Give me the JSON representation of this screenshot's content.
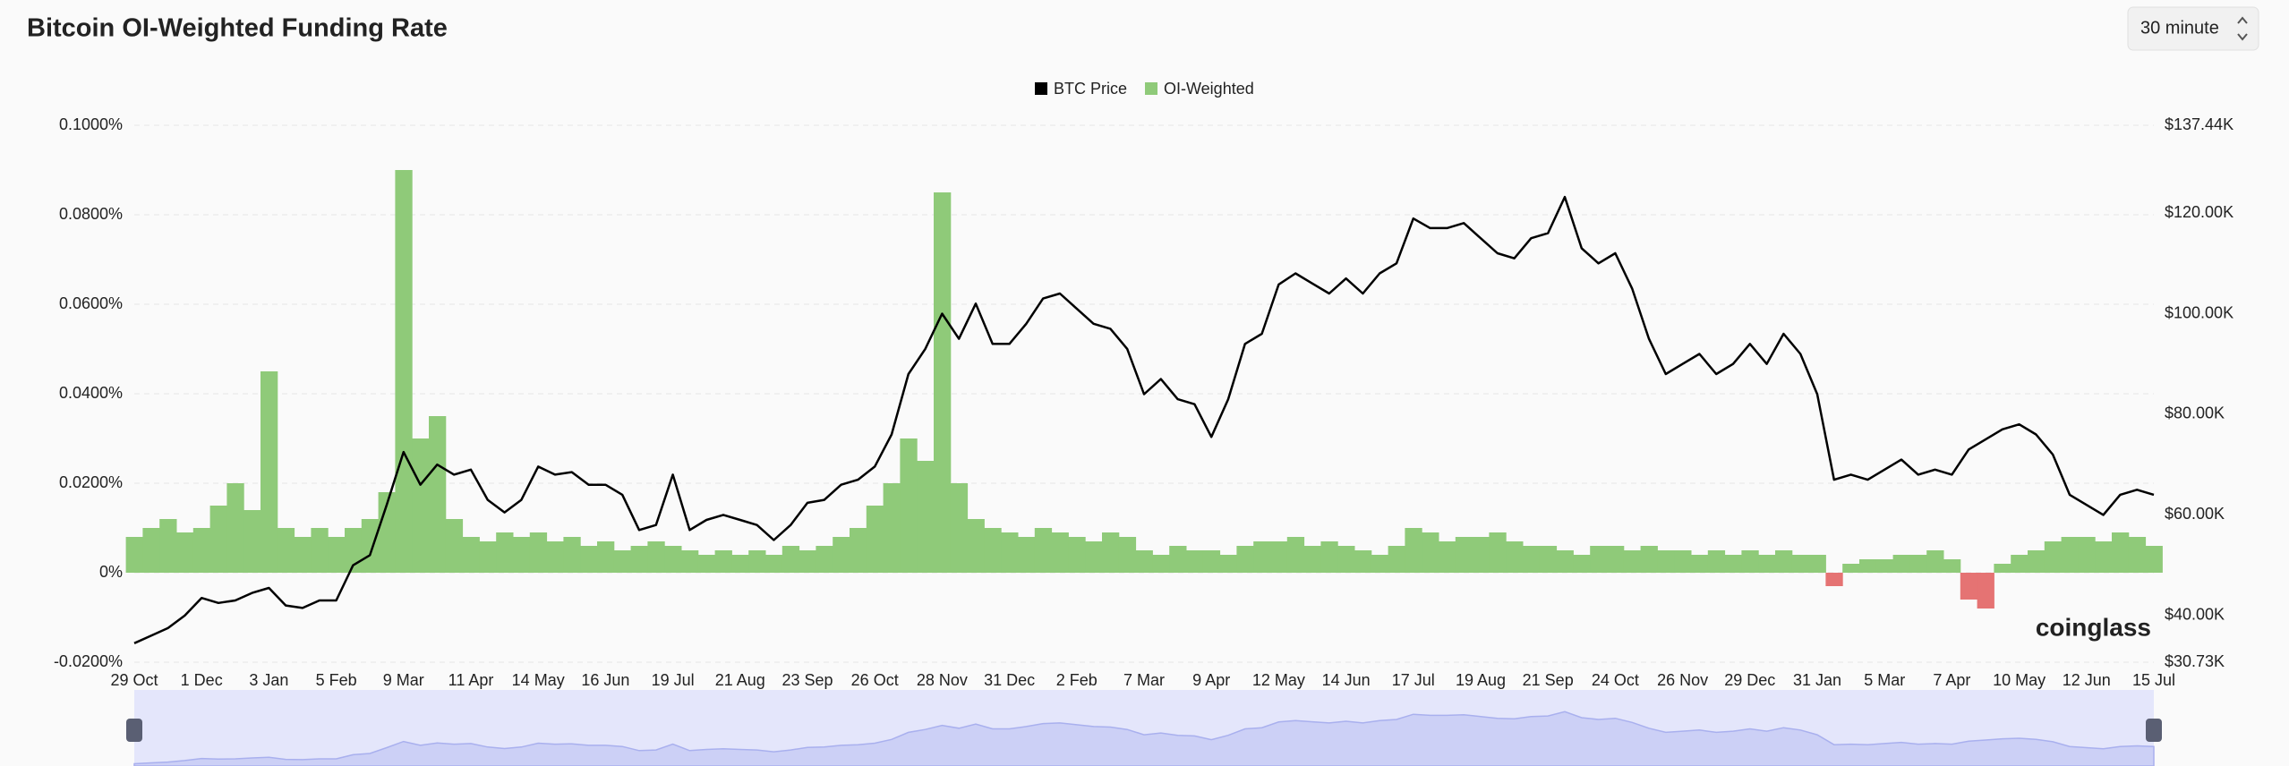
{
  "chart_data": {
    "type": "bar-line",
    "title": "Bitcoin OI-Weighted Funding Rate",
    "interval": "30 minute",
    "watermark": "coinglass",
    "categories": [
      "29 Oct",
      null,
      null,
      null,
      "1 Dec",
      null,
      null,
      null,
      "3 Jan",
      null,
      null,
      null,
      "5 Feb",
      null,
      null,
      null,
      "9 Mar",
      null,
      null,
      null,
      "11 Apr",
      null,
      null,
      null,
      "14 May",
      null,
      null,
      null,
      "16 Jun",
      null,
      null,
      null,
      "19 Jul",
      null,
      null,
      null,
      "21 Aug",
      null,
      null,
      null,
      "23 Sep",
      null,
      null,
      null,
      "26 Oct",
      null,
      null,
      null,
      "28 Nov",
      null,
      null,
      null,
      "31 Dec",
      null,
      null,
      null,
      "2 Feb",
      null,
      null,
      null,
      "7 Mar",
      null,
      null,
      null,
      "9 Apr",
      null,
      null,
      null,
      "12 May",
      null,
      null,
      null,
      "14 Jun",
      null,
      null,
      null,
      "17 Jul",
      null,
      null,
      null,
      "19 Aug",
      null,
      null,
      null,
      "21 Sep",
      null,
      null,
      null,
      "24 Oct",
      null,
      null,
      null,
      "26 Nov",
      null,
      null,
      null,
      "29 Dec",
      null,
      null,
      null,
      "31 Jan",
      null,
      null,
      null,
      "5 Mar",
      null,
      null,
      null,
      "7 Apr",
      null,
      null,
      null,
      "10 May",
      null,
      null,
      null,
      "12 Jun",
      null,
      null,
      null,
      "15 Jul"
    ],
    "series": [
      {
        "name": "BTC Price",
        "color": "#000000",
        "type": "line",
        "axis": "y2",
        "values": [
          34.5,
          36,
          37.5,
          40,
          43.5,
          42.5,
          43,
          44.5,
          45.5,
          42,
          41.5,
          43,
          43,
          50,
          52,
          62,
          72.5,
          66,
          70,
          68,
          69,
          63,
          60.5,
          63,
          69.6,
          68,
          68.5,
          66,
          66,
          64,
          57,
          58,
          68,
          57,
          59,
          60,
          59,
          58,
          55,
          58,
          62.4,
          63,
          66,
          67,
          69.6,
          76,
          88,
          93,
          100,
          95,
          102,
          94,
          94,
          98,
          103,
          104,
          101,
          98,
          97,
          93,
          84,
          87,
          83,
          82,
          75.5,
          83,
          94,
          96,
          105.8,
          108,
          106,
          104,
          107,
          104,
          108,
          110,
          118.9,
          117,
          117,
          118,
          115,
          112,
          111,
          115,
          116,
          123.2,
          113,
          110,
          112,
          105,
          95,
          88,
          90,
          92,
          88,
          90,
          94,
          90,
          96,
          92,
          84,
          67,
          68,
          67,
          69,
          71,
          68,
          69,
          68,
          73,
          75,
          77,
          78,
          76,
          72,
          64,
          62,
          60,
          64,
          65,
          64
        ]
      },
      {
        "name": "OI-Weighted",
        "color": "#8fca79",
        "negative_color": "#e57373",
        "type": "bar",
        "axis": "y",
        "values": [
          0.008,
          0.01,
          0.012,
          0.009,
          0.01,
          0.015,
          0.02,
          0.014,
          0.045,
          0.01,
          0.008,
          0.01,
          0.008,
          0.01,
          0.012,
          0.018,
          0.09,
          0.03,
          0.035,
          0.012,
          0.008,
          0.007,
          0.009,
          0.008,
          0.009,
          0.007,
          0.008,
          0.006,
          0.007,
          0.005,
          0.006,
          0.007,
          0.006,
          0.005,
          0.004,
          0.005,
          0.004,
          0.005,
          0.004,
          0.006,
          0.005,
          0.006,
          0.008,
          0.01,
          0.015,
          0.02,
          0.03,
          0.025,
          0.085,
          0.02,
          0.012,
          0.01,
          0.009,
          0.008,
          0.01,
          0.009,
          0.008,
          0.007,
          0.009,
          0.008,
          0.005,
          0.004,
          0.006,
          0.005,
          0.005,
          0.004,
          0.006,
          0.007,
          0.007,
          0.008,
          0.006,
          0.007,
          0.006,
          0.005,
          0.004,
          0.006,
          0.01,
          0.009,
          0.007,
          0.008,
          0.008,
          0.009,
          0.007,
          0.006,
          0.006,
          0.005,
          0.004,
          0.006,
          0.006,
          0.005,
          0.006,
          0.005,
          0.005,
          0.004,
          0.005,
          0.004,
          0.005,
          0.004,
          0.005,
          0.004,
          0.004,
          -0.003,
          0.002,
          0.003,
          0.003,
          0.004,
          0.004,
          0.005,
          0.003,
          -0.006,
          -0.008,
          0.002,
          0.004,
          0.005,
          0.007,
          0.008,
          0.008,
          0.007,
          0.009,
          0.008,
          0.006
        ]
      }
    ],
    "ylim": [
      -0.02,
      0.1
    ],
    "yticks": [
      {
        "value": -0.02,
        "label": "-0.0200%"
      },
      {
        "value": 0,
        "label": "0%"
      },
      {
        "value": 0.02,
        "label": "0.0200%"
      },
      {
        "value": 0.04,
        "label": "0.0400%"
      },
      {
        "value": 0.06,
        "label": "0.0600%"
      },
      {
        "value": 0.08,
        "label": "0.0800%"
      },
      {
        "value": 0.1,
        "label": "0.1000%"
      }
    ],
    "y2lim": [
      30.73,
      137.44
    ],
    "y2ticks": [
      {
        "value": 30.73,
        "label": "$30.73K"
      },
      {
        "value": 40,
        "label": "$40.00K"
      },
      {
        "value": 60,
        "label": "$60.00K"
      },
      {
        "value": 80,
        "label": "$80.00K"
      },
      {
        "value": 100,
        "label": "$100.00K"
      },
      {
        "value": 120,
        "label": "$120.00K"
      },
      {
        "value": 137.44,
        "label": "$137.44K"
      }
    ],
    "grid": true,
    "legend": "top"
  }
}
